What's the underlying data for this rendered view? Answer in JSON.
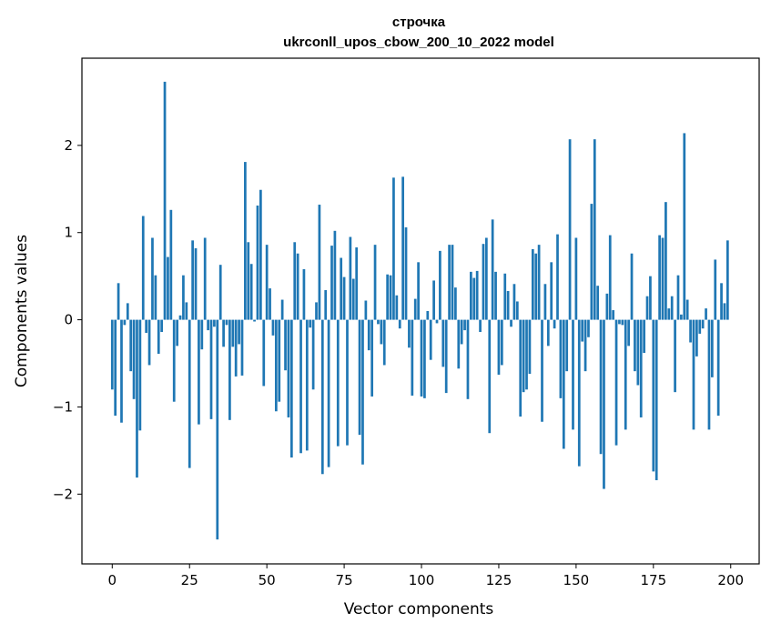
{
  "chart_data": {
    "type": "bar",
    "title_line1": "строчка",
    "title_line2": "ukrconll_upos_cbow_200_10_2022 model",
    "xlabel": "Vector components",
    "ylabel": "Components values",
    "xlim": [
      -9.8,
      209.2
    ],
    "ylim": [
      -2.8,
      3.0
    ],
    "xticks": [
      0,
      25,
      50,
      75,
      100,
      125,
      150,
      175,
      200
    ],
    "yticks": [
      -2,
      -1,
      0,
      1,
      2
    ],
    "ytick_labels": [
      "−2",
      "−1",
      "0",
      "1",
      "2"
    ],
    "grid": false,
    "bar_color": "#1f77b4",
    "values": [
      -0.8,
      -1.1,
      0.42,
      -1.18,
      -0.06,
      0.19,
      -0.59,
      -0.91,
      -1.81,
      -1.27,
      1.19,
      -0.15,
      -0.52,
      0.94,
      0.51,
      -0.39,
      -0.14,
      2.73,
      0.72,
      1.26,
      -0.94,
      -0.3,
      0.05,
      0.51,
      0.2,
      -1.7,
      0.91,
      0.82,
      -1.2,
      -0.34,
      0.94,
      -0.12,
      -1.14,
      -0.08,
      -2.52,
      0.63,
      -0.31,
      -0.06,
      -1.15,
      -0.31,
      -0.65,
      -0.28,
      -0.64,
      1.81,
      0.89,
      0.64,
      -0.02,
      1.31,
      1.49,
      -0.76,
      0.86,
      0.36,
      -0.18,
      -1.05,
      -0.94,
      0.23,
      -0.58,
      -1.12,
      -1.58,
      0.89,
      0.76,
      -1.53,
      0.58,
      -1.5,
      -0.09,
      -0.8,
      0.2,
      1.32,
      -1.77,
      0.34,
      -1.69,
      0.85,
      1.02,
      -1.45,
      0.71,
      0.49,
      -1.44,
      0.95,
      0.47,
      0.83,
      -1.32,
      -1.66,
      0.22,
      -0.35,
      -0.88,
      0.86,
      -0.05,
      -0.28,
      -0.52,
      0.52,
      0.51,
      1.63,
      0.28,
      -0.1,
      1.64,
      1.06,
      -0.32,
      -0.87,
      0.24,
      0.66,
      -0.88,
      -0.9,
      0.1,
      -0.46,
      0.45,
      -0.04,
      0.79,
      -0.54,
      -0.84,
      0.86,
      0.86,
      0.37,
      -0.56,
      -0.28,
      -0.12,
      -0.91,
      0.55,
      0.48,
      0.56,
      -0.14,
      0.87,
      0.94,
      -1.3,
      1.15,
      0.55,
      -0.63,
      -0.52,
      0.53,
      0.33,
      -0.08,
      0.41,
      0.21,
      -1.11,
      -0.83,
      -0.8,
      -0.62,
      0.81,
      0.76,
      0.86,
      -1.17,
      0.41,
      -0.3,
      0.66,
      -0.1,
      0.98,
      -0.9,
      -1.48,
      -0.59,
      2.07,
      -1.26,
      0.94,
      -1.68,
      -0.25,
      -0.59,
      -0.2,
      1.33,
      2.07,
      0.39,
      -1.54,
      -1.94,
      0.3,
      0.97,
      0.11,
      -1.44,
      -0.05,
      -0.06,
      -1.26,
      -0.3,
      0.76,
      -0.59,
      -0.75,
      -1.12,
      -0.38,
      0.27,
      0.5,
      -1.74,
      -1.84,
      0.97,
      0.94,
      1.35,
      0.13,
      0.27,
      -0.83,
      0.51,
      0.06,
      2.14,
      0.23,
      -0.26,
      -1.26,
      -0.42,
      -0.16,
      -0.1,
      0.13,
      -1.26,
      -0.66,
      0.69,
      -1.1,
      0.42,
      0.19,
      0.91
    ]
  }
}
